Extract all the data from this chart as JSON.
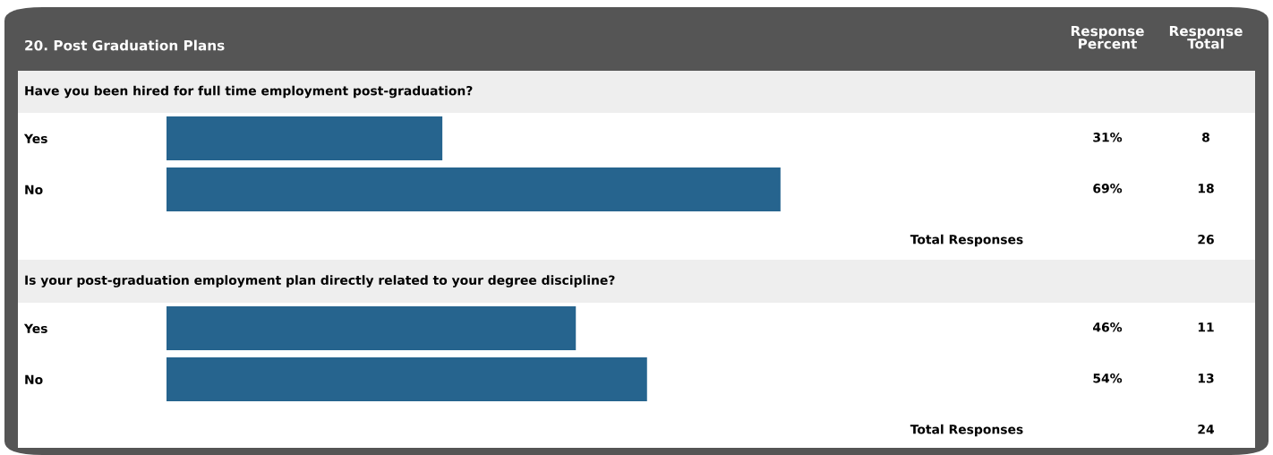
{
  "chart_data": [
    {
      "type": "bar",
      "orientation": "horizontal",
      "title": "20. Post Graduation Plans",
      "subtitle": "Have you been hired for full time employment post-graduation?",
      "categories": [
        "Yes",
        "No"
      ],
      "values": [
        31,
        69
      ],
      "value_labels": [
        "31%",
        "69%"
      ],
      "color": "#26648e",
      "tick_labels": "y",
      "grid": false,
      "legend": false,
      "annotations": [
        "Response Percent",
        "Response Total",
        "8",
        "18",
        "Total Responses",
        "26"
      ]
    },
    {
      "type": "bar",
      "orientation": "horizontal",
      "subtitle": "Is your post-graduation employment plan directly related to your degree discipline?",
      "categories": [
        "Yes",
        "No"
      ],
      "values": [
        46,
        54
      ],
      "value_labels": [
        "46%",
        "54%"
      ],
      "color": "#26648e",
      "tick_labels": "y",
      "grid": false,
      "legend": false,
      "annotations": [
        "11",
        "13",
        "Total Responses",
        "24"
      ]
    }
  ]
}
